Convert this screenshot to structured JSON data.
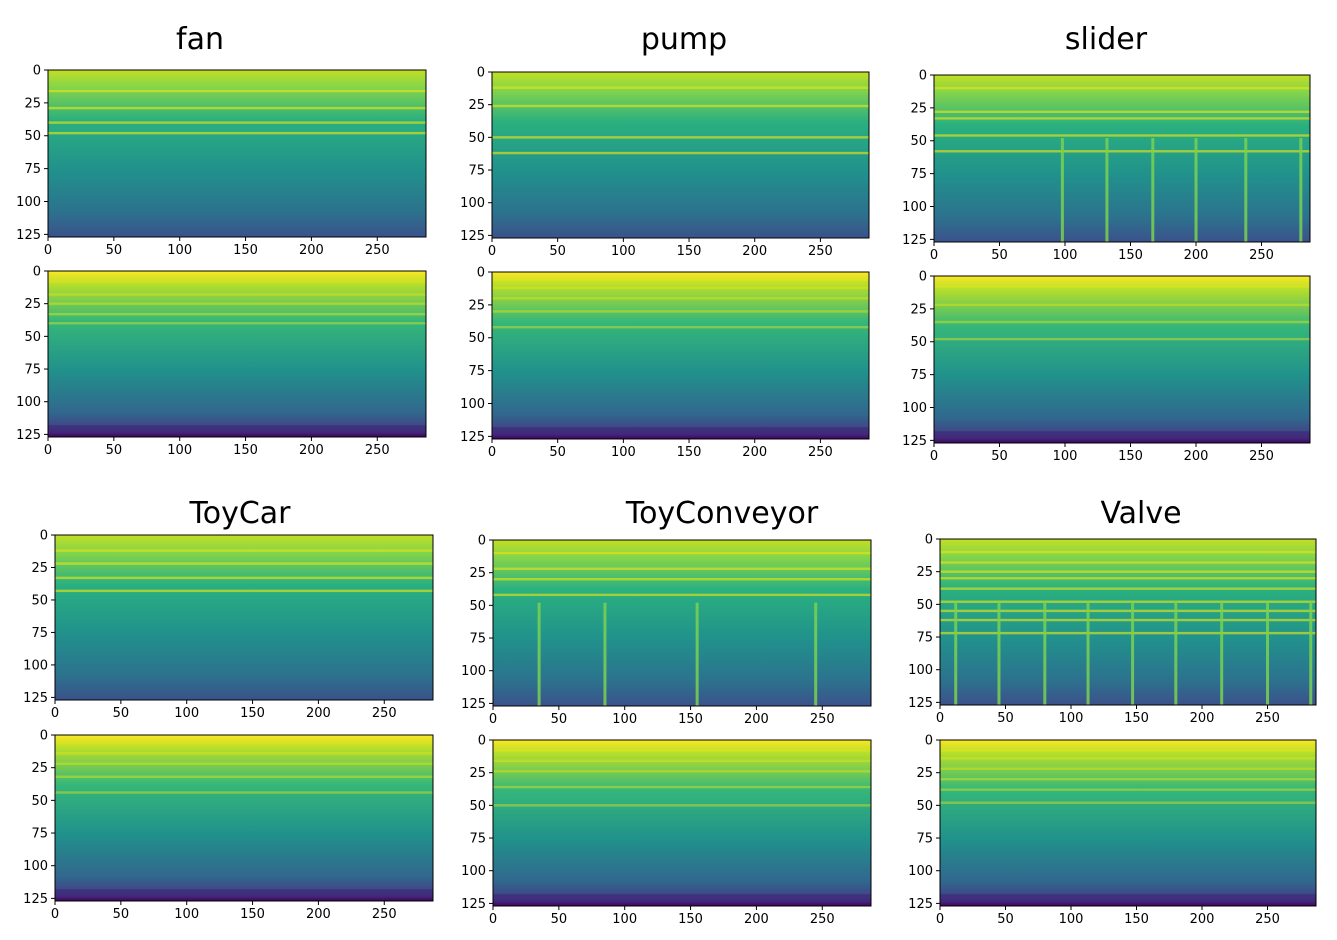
{
  "chart_data": {
    "type": "heatmap",
    "colormap": "viridis",
    "groups": [
      {
        "title": "fan",
        "x_ticks": [
          "0",
          "50",
          "100",
          "150",
          "200",
          "250"
        ],
        "y_ticks": [
          "0",
          "25",
          "50",
          "75",
          "100",
          "125"
        ],
        "xlim": [
          0,
          287
        ],
        "ylim": [
          127,
          0
        ],
        "panels": [
          {
            "kind": "spectrogram",
            "bands": [
              16,
              29,
              40,
              48
            ],
            "pulses": []
          },
          {
            "kind": "reconstruction",
            "bands": [
              8,
              18,
              25,
              33,
              40
            ],
            "pulses": []
          }
        ]
      },
      {
        "title": "pump",
        "x_ticks": [
          "0",
          "50",
          "100",
          "150",
          "200",
          "250"
        ],
        "y_ticks": [
          "0",
          "25",
          "50",
          "75",
          "100",
          "125"
        ],
        "xlim": [
          0,
          287
        ],
        "ylim": [
          127,
          0
        ],
        "panels": [
          {
            "kind": "spectrogram",
            "bands": [
              12,
              26,
              50,
              62
            ],
            "pulses": []
          },
          {
            "kind": "reconstruction",
            "bands": [
              6,
              12,
              20,
              30,
              42
            ],
            "pulses": []
          }
        ]
      },
      {
        "title": "slider",
        "x_ticks": [
          "0",
          "50",
          "100",
          "150",
          "200",
          "250"
        ],
        "y_ticks": [
          "0",
          "25",
          "50",
          "75",
          "100",
          "125"
        ],
        "xlim": [
          0,
          287
        ],
        "ylim": [
          127,
          0
        ],
        "panels": [
          {
            "kind": "spectrogram",
            "bands": [
              10,
              28,
              33,
              46,
              58
            ],
            "pulses": [
              98,
              132,
              167,
              200,
              238,
              280
            ]
          },
          {
            "kind": "reconstruction",
            "bands": [
              8,
              22,
              35,
              48
            ],
            "pulses": []
          }
        ]
      },
      {
        "title": "ToyCar",
        "x_ticks": [
          "0",
          "50",
          "100",
          "150",
          "200",
          "250"
        ],
        "y_ticks": [
          "0",
          "25",
          "50",
          "75",
          "100",
          "125"
        ],
        "xlim": [
          0,
          287
        ],
        "ylim": [
          127,
          0
        ],
        "panels": [
          {
            "kind": "spectrogram",
            "bands": [
              12,
              22,
              33,
              43
            ],
            "pulses": []
          },
          {
            "kind": "reconstruction",
            "bands": [
              6,
              14,
              22,
              32,
              44
            ],
            "pulses": []
          }
        ]
      },
      {
        "title": "ToyConveyor",
        "x_ticks": [
          "0",
          "50",
          "100",
          "150",
          "200",
          "250"
        ],
        "y_ticks": [
          "0",
          "25",
          "50",
          "75",
          "100",
          "125"
        ],
        "xlim": [
          0,
          287
        ],
        "ylim": [
          127,
          0
        ],
        "panels": [
          {
            "kind": "spectrogram",
            "bands": [
              10,
              22,
              30,
              42
            ],
            "pulses": [
              35,
              85,
              155,
              245
            ]
          },
          {
            "kind": "reconstruction",
            "bands": [
              8,
              16,
              24,
              36,
              50
            ],
            "pulses": []
          }
        ]
      },
      {
        "title": "Valve",
        "x_ticks": [
          "0",
          "50",
          "100",
          "150",
          "200",
          "250"
        ],
        "y_ticks": [
          "0",
          "25",
          "50",
          "75",
          "100",
          "125"
        ],
        "xlim": [
          0,
          287
        ],
        "ylim": [
          127,
          0
        ],
        "panels": [
          {
            "kind": "spectrogram",
            "bands": [
              10,
              18,
              25,
              30,
              38,
              48,
              55,
              62,
              72
            ],
            "pulses": [
              12,
              45,
              80,
              113,
              147,
              180,
              215,
              250,
              283
            ]
          },
          {
            "kind": "reconstruction",
            "bands": [
              8,
              14,
              22,
              30,
              38,
              48
            ],
            "pulses": []
          }
        ]
      }
    ]
  }
}
